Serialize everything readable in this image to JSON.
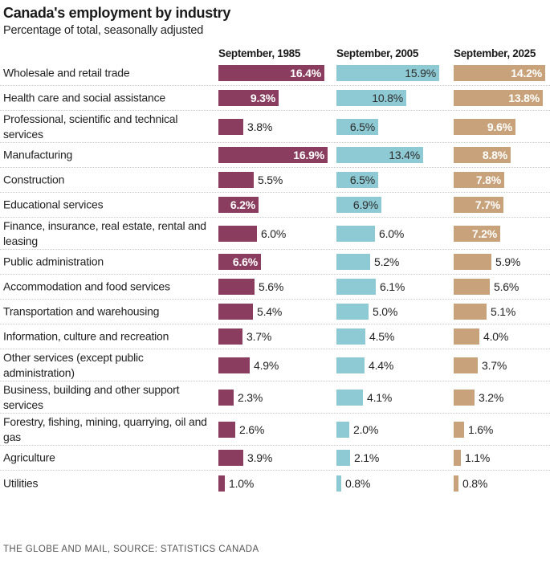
{
  "header": {
    "title": "Canada's employment by industry",
    "subtitle": "Percentage of total, seasonally adjusted"
  },
  "footer": {
    "source": "THE GLOBE AND MAIL, SOURCE: STATISTICS CANADA"
  },
  "chart_data": {
    "type": "bar",
    "orientation": "horizontal",
    "layout": "small-multiples",
    "title": "Canada's employment by industry",
    "subtitle": "Percentage of total, seasonally adjusted",
    "unit": "%",
    "xlim": [
      0,
      16.9
    ],
    "grid": false,
    "legend": "none (column headers)",
    "categories": [
      "Wholesale and retail trade",
      "Health care and social assistance",
      "Professional, scientific and technical services",
      "Manufacturing",
      "Construction",
      "Educational services",
      "Finance, insurance, real estate, rental and leasing",
      "Public administration",
      "Accommodation and food services",
      "Transportation and warehousing",
      "Information, culture and recreation",
      "Other services (except public administration)",
      "Business, building and other support services",
      "Forestry, fishing, mining, quarrying, oil and gas",
      "Agriculture",
      "Utilities"
    ],
    "series": [
      {
        "name": "September, 1985",
        "color": "#8a3d5e",
        "values": [
          16.4,
          9.3,
          3.8,
          16.9,
          5.5,
          6.2,
          6.0,
          6.6,
          5.6,
          5.4,
          3.7,
          4.9,
          2.3,
          2.6,
          3.9,
          1.0
        ],
        "labels": [
          "16.4%",
          "9.3%",
          "3.8%",
          "16.9%",
          "5.5%",
          "6.2%",
          "6.0%",
          "6.6%",
          "5.6%",
          "5.4%",
          "3.7%",
          "4.9%",
          "2.3%",
          "2.6%",
          "3.9%",
          "1.0%"
        ]
      },
      {
        "name": "September, 2005",
        "color": "#8ecad4",
        "values": [
          15.9,
          10.8,
          6.5,
          13.4,
          6.5,
          6.9,
          6.0,
          5.2,
          6.1,
          5.0,
          4.5,
          4.4,
          4.1,
          2.0,
          2.1,
          0.8
        ],
        "labels": [
          "15.9%",
          "10.8%",
          "6.5%",
          "13.4%",
          "6.5%",
          "6.9%",
          "6.0%",
          "5.2%",
          "6.1%",
          "5.0%",
          "4.5%",
          "4.4%",
          "4.1%",
          "2.0%",
          "2.1%",
          "0.8%"
        ]
      },
      {
        "name": "September, 2025",
        "color": "#c8a27a",
        "values": [
          14.2,
          13.8,
          9.6,
          8.8,
          7.8,
          7.7,
          7.2,
          5.9,
          5.6,
          5.1,
          4.0,
          3.7,
          3.2,
          1.6,
          1.1,
          0.8
        ],
        "labels": [
          "14.2%",
          "13.8%",
          "9.6%",
          "8.8%",
          "7.8%",
          "7.7%",
          "7.2%",
          "5.9%",
          "5.6%",
          "5.1%",
          "4.0%",
          "3.7%",
          "3.2%",
          "1.6%",
          "1.1%",
          "0.8%"
        ]
      }
    ]
  }
}
